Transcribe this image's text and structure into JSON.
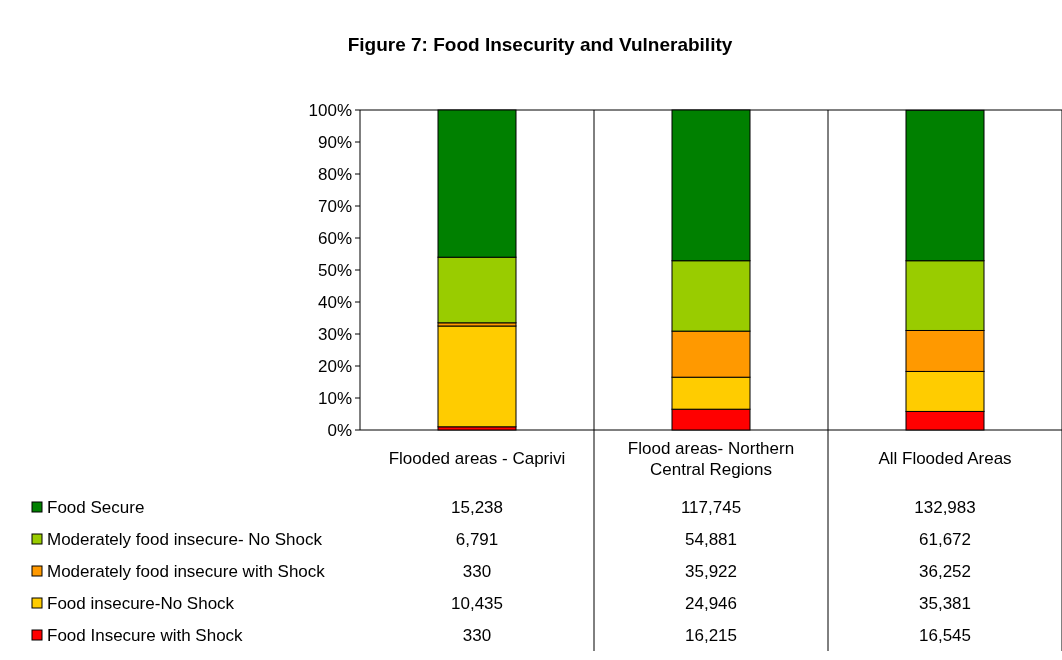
{
  "chart_data": {
    "type": "bar",
    "title": "Figure 7: Food Insecurity and Vulnerability",
    "stacked": true,
    "categories": [
      "Flooded areas - Caprivi",
      "Flood areas- Northern Central Regions",
      "All Flooded Areas"
    ],
    "series": [
      {
        "name": "Food Insecure with Shock",
        "color": "#ff0000",
        "values": [
          1.0,
          6.5,
          5.8
        ]
      },
      {
        "name": "Food insecure-No Shock",
        "color": "#ffcc00",
        "values": [
          31.5,
          10.0,
          12.5
        ]
      },
      {
        "name": "Moderately food insecure with Shock",
        "color": "#ff9900",
        "values": [
          1.0,
          14.4,
          12.8
        ]
      },
      {
        "name": "Moderately food insecure- No Shock",
        "color": "#99cc00",
        "values": [
          20.5,
          22.0,
          21.8
        ]
      },
      {
        "name": "Food Secure",
        "color": "#008000",
        "values": [
          46.0,
          47.1,
          47.0
        ]
      }
    ],
    "annotations": [
      "15,238",
      "117,745",
      "132,983",
      "6,791",
      "54,881",
      "61,672",
      "330",
      "35,922",
      "36,252",
      "10,435",
      "24,946",
      "35,381",
      "330",
      "16,215",
      "16,545"
    ],
    "ylim": [
      0,
      100
    ],
    "yticks": [
      {
        "value": 0,
        "label": "0%"
      },
      {
        "value": 10,
        "label": "10%"
      },
      {
        "value": 20,
        "label": "20%"
      },
      {
        "value": 30,
        "label": "30%"
      },
      {
        "value": 40,
        "label": "40%"
      },
      {
        "value": 50,
        "label": "50%"
      },
      {
        "value": 60,
        "label": "60%"
      },
      {
        "value": 70,
        "label": "70%"
      },
      {
        "value": 80,
        "label": "80%"
      },
      {
        "value": 90,
        "label": "90%"
      },
      {
        "value": 100,
        "label": "100%"
      }
    ],
    "legend": "bottom"
  }
}
